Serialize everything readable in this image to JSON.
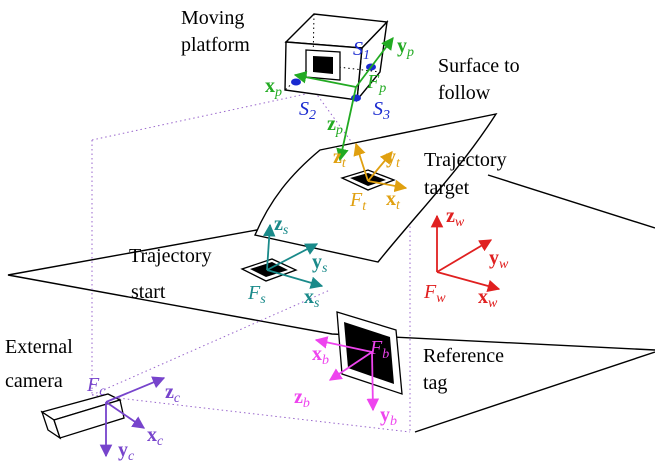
{
  "labels": {
    "moving_platform_1": "Moving",
    "moving_platform_2": "platform",
    "surface_1": "Surface to",
    "surface_2": "follow",
    "traj_target_1": "Trajectory",
    "traj_target_2": "target",
    "traj_start_1": "Trajectory",
    "traj_start_2": "start",
    "external_camera_1": "External",
    "external_camera_2": "camera",
    "reference_tag_1": "Reference",
    "reference_tag_2": "tag"
  },
  "frames": {
    "platform": {
      "origin": "F",
      "origin_sub": "p",
      "x": "x",
      "x_sub": "p",
      "y": "y",
      "y_sub": "p",
      "z": "z",
      "z_sub": "p"
    },
    "target": {
      "origin": "F",
      "origin_sub": "t",
      "x": "x",
      "x_sub": "t",
      "y": "y",
      "y_sub": "t",
      "z": "z",
      "z_sub": "t"
    },
    "start": {
      "origin": "F",
      "origin_sub": "s",
      "x": "x",
      "x_sub": "s",
      "y": "y",
      "y_sub": "s",
      "z": "z",
      "z_sub": "s"
    },
    "world": {
      "origin": "F",
      "origin_sub": "w",
      "x": "x",
      "x_sub": "w",
      "y": "y",
      "y_sub": "w",
      "z": "z",
      "z_sub": "w"
    },
    "tag": {
      "origin": "F",
      "origin_sub": "b",
      "x": "x",
      "x_sub": "b",
      "y": "y",
      "y_sub": "b",
      "z": "z",
      "z_sub": "b"
    },
    "camera": {
      "origin": "F",
      "origin_sub": "c",
      "x": "x",
      "x_sub": "c",
      "y": "y",
      "y_sub": "c",
      "z": "z",
      "z_sub": "c"
    }
  },
  "sensors": [
    {
      "name": "S",
      "sub": "1"
    },
    {
      "name": "S",
      "sub": "2"
    },
    {
      "name": "S",
      "sub": "3"
    }
  ],
  "colors": {
    "platform": "#22aa22",
    "target": "#e0a010",
    "start": "#1a8a8a",
    "world": "#e02020",
    "tag": "#ee44ee",
    "camera": "#7744cc",
    "sensor": "#1a2ad0",
    "camera_rays": "#9966cc"
  }
}
